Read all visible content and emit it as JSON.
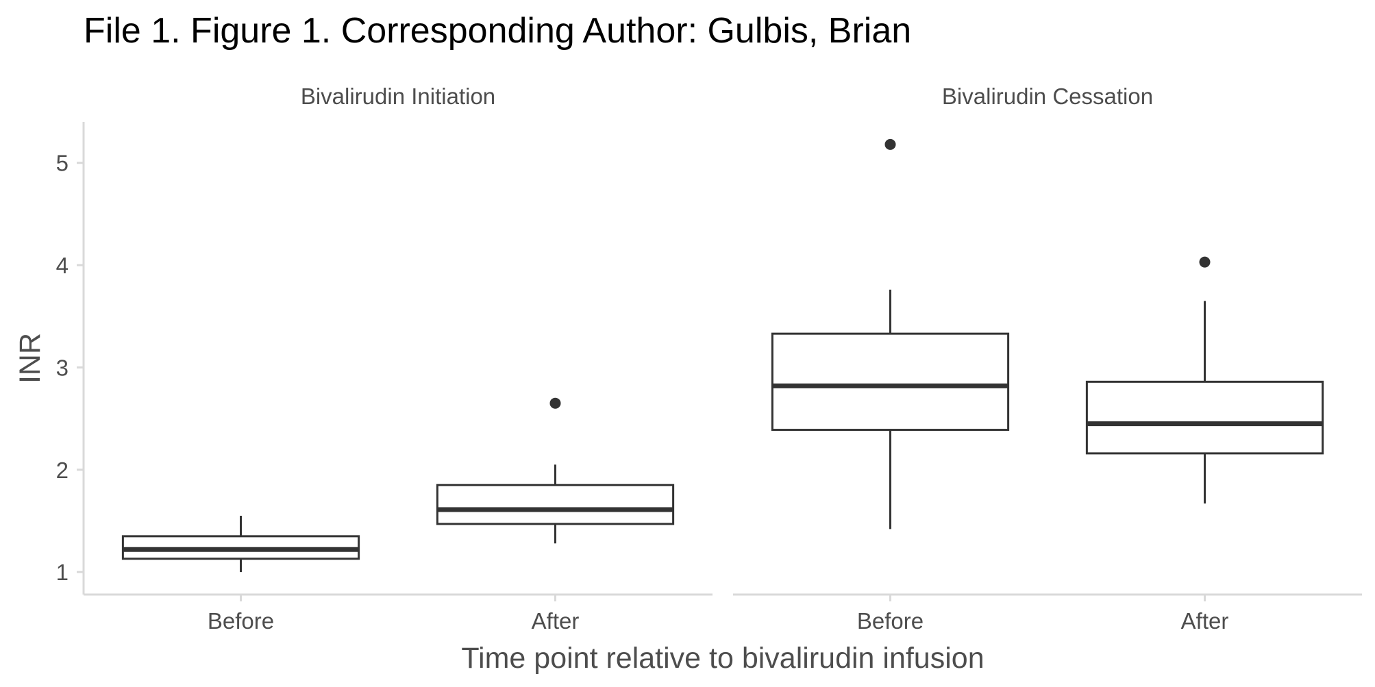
{
  "chart_data": {
    "type": "boxplot",
    "title": "File 1. Figure 1. Corresponding Author: Gulbis, Brian",
    "xlabel": "Time point relative to bivalirudin infusion",
    "ylabel": "INR",
    "ylim": [
      0.78,
      5.4
    ],
    "y_ticks": [
      "1",
      "2",
      "3",
      "4",
      "5"
    ],
    "categories": [
      "Before",
      "After"
    ],
    "grid": false,
    "panels": [
      {
        "label": "Bivalirudin Initiation",
        "boxes": [
          {
            "category": "Before",
            "whisker_low": 1.0,
            "q1": 1.13,
            "median": 1.22,
            "q3": 1.35,
            "whisker_high": 1.55,
            "outliers": []
          },
          {
            "category": "After",
            "whisker_low": 1.28,
            "q1": 1.47,
            "median": 1.61,
            "q3": 1.85,
            "whisker_high": 2.05,
            "outliers": [
              2.65
            ]
          }
        ]
      },
      {
        "label": "Bivalirudin Cessation",
        "boxes": [
          {
            "category": "Before",
            "whisker_low": 1.42,
            "q1": 2.39,
            "median": 2.82,
            "q3": 3.33,
            "whisker_high": 3.76,
            "outliers": [
              5.18
            ]
          },
          {
            "category": "After",
            "whisker_low": 1.67,
            "q1": 2.16,
            "median": 2.45,
            "q3": 2.86,
            "whisker_high": 3.65,
            "outliers": [
              4.03
            ]
          }
        ]
      }
    ],
    "colors": {
      "box_stroke": "#333333",
      "box_fill": "#ffffff",
      "axis_line": "#d9d9d9",
      "text": "#4d4d4d"
    }
  }
}
